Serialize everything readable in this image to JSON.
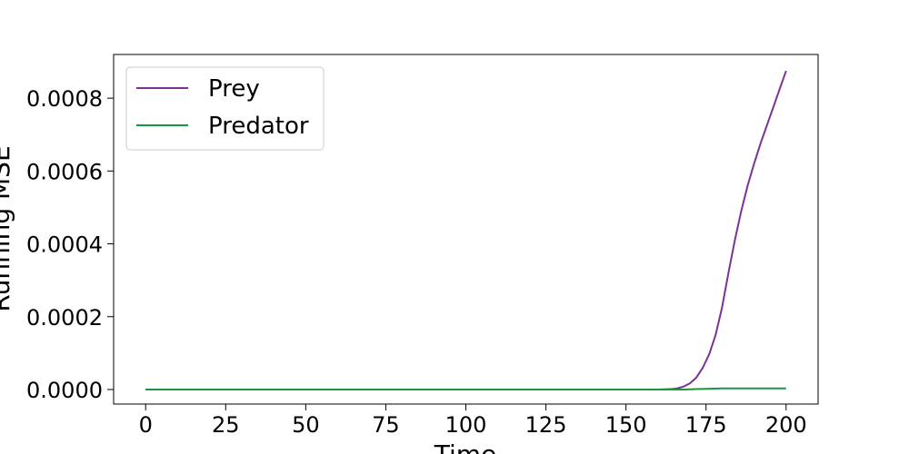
{
  "chart_data": {
    "type": "line",
    "title": "",
    "xlabel": "Time",
    "ylabel": "Running MSE",
    "xlim": [
      -10,
      210
    ],
    "ylim": [
      -4e-05,
      0.00092
    ],
    "x_ticks": [
      0,
      25,
      50,
      75,
      100,
      125,
      150,
      175,
      200
    ],
    "y_ticks": [
      0.0,
      0.0002,
      0.0004,
      0.0006,
      0.0008
    ],
    "x_tick_labels": [
      "0",
      "25",
      "50",
      "75",
      "100",
      "125",
      "150",
      "175",
      "200"
    ],
    "y_tick_labels": [
      "0.0000",
      "0.0002",
      "0.0004",
      "0.0006",
      "0.0008"
    ],
    "grid": false,
    "legend_position": "top-left",
    "x": [
      0,
      25,
      50,
      75,
      100,
      125,
      150,
      160,
      164,
      166,
      168,
      170,
      172,
      174,
      176,
      178,
      180,
      182,
      184,
      186,
      188,
      190,
      192,
      194,
      196,
      198,
      200
    ],
    "series": [
      {
        "name": "Prey",
        "color": "#7b3294",
        "values": [
          0,
          0,
          0,
          0,
          0,
          0,
          0,
          0,
          1e-06,
          3e-06,
          8e-06,
          1.7e-05,
          3.3e-05,
          6e-05,
          9.7e-05,
          0.00015,
          0.000225,
          0.00032,
          0.00041,
          0.00049,
          0.00056,
          0.00062,
          0.000675,
          0.000725,
          0.000775,
          0.000825,
          0.000875
        ]
      },
      {
        "name": "Predator",
        "color": "#1a9641",
        "values": [
          0,
          0,
          0,
          0,
          0,
          0,
          0,
          0,
          0,
          0,
          0,
          5e-07,
          1e-06,
          1.5e-06,
          2e-06,
          2.5e-06,
          3e-06,
          3e-06,
          3e-06,
          3e-06,
          3e-06,
          3e-06,
          3e-06,
          3e-06,
          3e-06,
          3e-06,
          3e-06
        ]
      }
    ]
  }
}
